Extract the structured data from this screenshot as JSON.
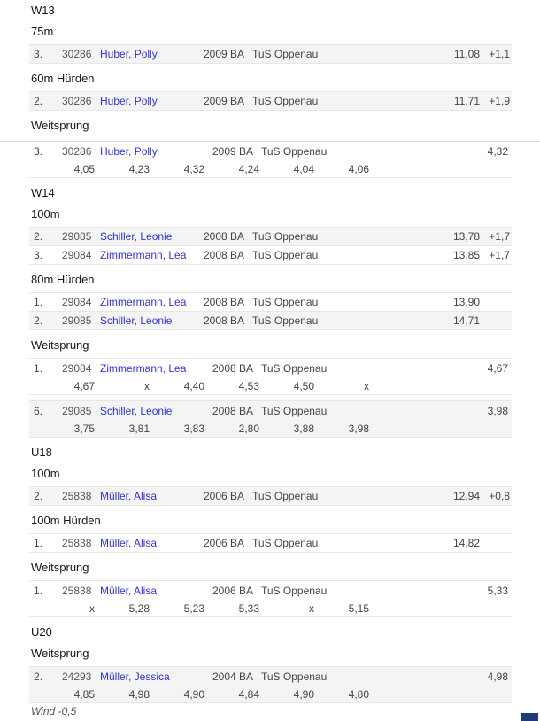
{
  "page": {
    "wind_note": "Wind -0,5"
  },
  "colors": {
    "link_blue": "#3234cc",
    "stripe_gray": "#f4f4f4",
    "border_gray": "#e7e7e7",
    "corner_widget_blue": "#1e3c78"
  },
  "sections": [
    {
      "category": "W13",
      "events": [
        {
          "name": "75m",
          "type": "track",
          "rows": [
            {
              "place": "3.",
              "id": "30286",
              "athlete": "Huber, Polly",
              "yob": "2009 BA",
              "club": "TuS Oppenau",
              "result": "11,08",
              "wind": "+1,1",
              "shaded": true
            }
          ]
        },
        {
          "name": "60m Hürden",
          "type": "track",
          "rows": [
            {
              "place": "2.",
              "id": "30286",
              "athlete": "Huber, Polly",
              "yob": "2009 BA",
              "club": "TuS Oppenau",
              "result": "11,71",
              "wind": "+1,9",
              "shaded": true
            }
          ]
        },
        {
          "name": "Weitsprung",
          "type": "jump",
          "rows": [
            {
              "place": "3.",
              "id": "30286",
              "athlete": "Huber, Polly",
              "yob": "2009 BA",
              "club": "TuS Oppenau",
              "result": "4,32",
              "attempts": [
                "4,05",
                "4,23",
                "4,32",
                "4,24",
                "4,04",
                "4,06"
              ],
              "shaded": false
            }
          ]
        }
      ]
    },
    {
      "category": "W14",
      "events": [
        {
          "name": "100m",
          "type": "track",
          "rows": [
            {
              "place": "2.",
              "id": "29085",
              "athlete": "Schiller, Leonie",
              "yob": "2008 BA",
              "club": "TuS Oppenau",
              "result": "13,78",
              "wind": "+1,7",
              "shaded": true
            },
            {
              "place": "3.",
              "id": "29084",
              "athlete": "Zimmermann, Lea",
              "yob": "2008 BA",
              "club": "TuS Oppenau",
              "result": "13,85",
              "wind": "+1,7",
              "shaded": false
            }
          ]
        },
        {
          "name": "80m Hürden",
          "type": "track",
          "rows": [
            {
              "place": "1.",
              "id": "29084",
              "athlete": "Zimmermann, Lea",
              "yob": "2008 BA",
              "club": "TuS Oppenau",
              "result": "13,90",
              "wind": "",
              "shaded": false
            },
            {
              "place": "2.",
              "id": "29085",
              "athlete": "Schiller, Leonie",
              "yob": "2008 BA",
              "club": "TuS Oppenau",
              "result": "14,71",
              "wind": "",
              "shaded": true
            }
          ]
        },
        {
          "name": "Weitsprung",
          "type": "jump",
          "rows": [
            {
              "place": "1.",
              "id": "29084",
              "athlete": "Zimmermann, Lea",
              "yob": "2008 BA",
              "club": "TuS Oppenau",
              "result": "4,67",
              "attempts": [
                "4,67",
                "x",
                "4,40",
                "4,53",
                "4,50",
                "x"
              ],
              "shaded": false
            },
            {
              "place": "6.",
              "id": "29085",
              "athlete": "Schiller, Leonie",
              "yob": "2008 BA",
              "club": "TuS Oppenau",
              "result": "3,98",
              "attempts": [
                "3,75",
                "3,81",
                "3,83",
                "2,80",
                "3,88",
                "3,98"
              ],
              "shaded": true
            }
          ]
        }
      ]
    },
    {
      "category": "U18",
      "events": [
        {
          "name": "100m",
          "type": "track",
          "rows": [
            {
              "place": "2.",
              "id": "25838",
              "athlete": "Müller, Alisa",
              "yob": "2006 BA",
              "club": "TuS Oppenau",
              "result": "12,94",
              "wind": "+0,8",
              "shaded": true
            }
          ]
        },
        {
          "name": "100m Hürden",
          "type": "track",
          "rows": [
            {
              "place": "1.",
              "id": "25838",
              "athlete": "Müller, Alisa",
              "yob": "2006 BA",
              "club": "TuS Oppenau",
              "result": "14,82",
              "wind": "",
              "shaded": false
            }
          ]
        },
        {
          "name": "Weitsprung",
          "type": "jump",
          "rows": [
            {
              "place": "1.",
              "id": "25838",
              "athlete": "Müller, Alisa",
              "yob": "2006 BA",
              "club": "TuS Oppenau",
              "result": "5,33",
              "attempts": [
                "x",
                "5,28",
                "5,23",
                "5,33",
                "x",
                "5,15"
              ],
              "shaded": false
            }
          ]
        }
      ]
    },
    {
      "category": "U20",
      "events": [
        {
          "name": "Weitsprung",
          "type": "jump",
          "rows": [
            {
              "place": "2.",
              "id": "24293",
              "athlete": "Müller, Jessica",
              "yob": "2004 BA",
              "club": "TuS Oppenau",
              "result": "4,98",
              "attempts": [
                "4,85",
                "4,98",
                "4,90",
                "4,84",
                "4,90",
                "4,80"
              ],
              "shaded": true
            }
          ]
        }
      ]
    }
  ]
}
